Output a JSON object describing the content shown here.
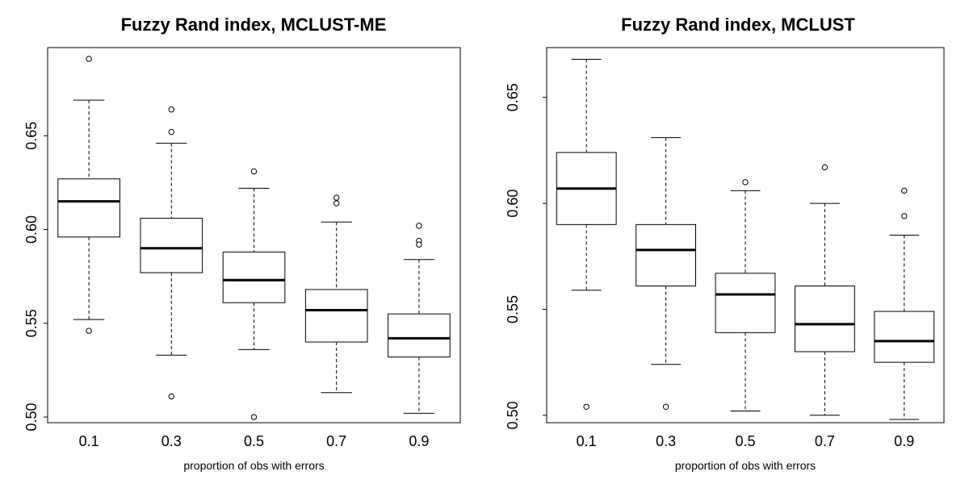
{
  "chart_data": [
    {
      "type": "box",
      "title": "Fuzzy Rand index, MCLUST-ME",
      "xlabel": "proportion of obs with errors",
      "ylabel": "",
      "ylim": [
        0.497,
        0.697
      ],
      "yticks": [
        "0.50",
        "0.55",
        "0.60",
        "0.65"
      ],
      "categories": [
        "0.1",
        "0.3",
        "0.5",
        "0.7",
        "0.9"
      ],
      "boxes": [
        {
          "low": 0.552,
          "q1": 0.596,
          "median": 0.615,
          "q3": 0.627,
          "high": 0.669,
          "outliers": [
            0.691,
            0.546
          ]
        },
        {
          "low": 0.533,
          "q1": 0.577,
          "median": 0.59,
          "q3": 0.606,
          "high": 0.646,
          "outliers": [
            0.664,
            0.652,
            0.511
          ]
        },
        {
          "low": 0.536,
          "q1": 0.561,
          "median": 0.573,
          "q3": 0.588,
          "high": 0.622,
          "outliers": [
            0.631,
            0.5
          ]
        },
        {
          "low": 0.513,
          "q1": 0.54,
          "median": 0.557,
          "q3": 0.568,
          "high": 0.604,
          "outliers": [
            0.617,
            0.614
          ]
        },
        {
          "low": 0.502,
          "q1": 0.532,
          "median": 0.542,
          "q3": 0.555,
          "high": 0.584,
          "outliers": [
            0.602,
            0.594,
            0.592
          ]
        }
      ]
    },
    {
      "type": "box",
      "title": "Fuzzy Rand index, MCLUST",
      "xlabel": "proportion of obs with errors",
      "ylabel": "",
      "ylim": [
        0.4965,
        0.6735
      ],
      "yticks": [
        "0.50",
        "0.55",
        "0.60",
        "0.65"
      ],
      "categories": [
        "0.1",
        "0.3",
        "0.5",
        "0.7",
        "0.9"
      ],
      "boxes": [
        {
          "low": 0.559,
          "q1": 0.59,
          "median": 0.607,
          "q3": 0.624,
          "high": 0.668,
          "outliers": [
            0.504
          ]
        },
        {
          "low": 0.524,
          "q1": 0.561,
          "median": 0.578,
          "q3": 0.59,
          "high": 0.631,
          "outliers": [
            0.504
          ]
        },
        {
          "low": 0.502,
          "q1": 0.539,
          "median": 0.557,
          "q3": 0.567,
          "high": 0.606,
          "outliers": [
            0.61
          ]
        },
        {
          "low": 0.5,
          "q1": 0.53,
          "median": 0.543,
          "q3": 0.561,
          "high": 0.6,
          "outliers": [
            0.617
          ]
        },
        {
          "low": 0.498,
          "q1": 0.525,
          "median": 0.535,
          "q3": 0.549,
          "high": 0.585,
          "outliers": [
            0.606,
            0.594
          ]
        }
      ]
    }
  ]
}
